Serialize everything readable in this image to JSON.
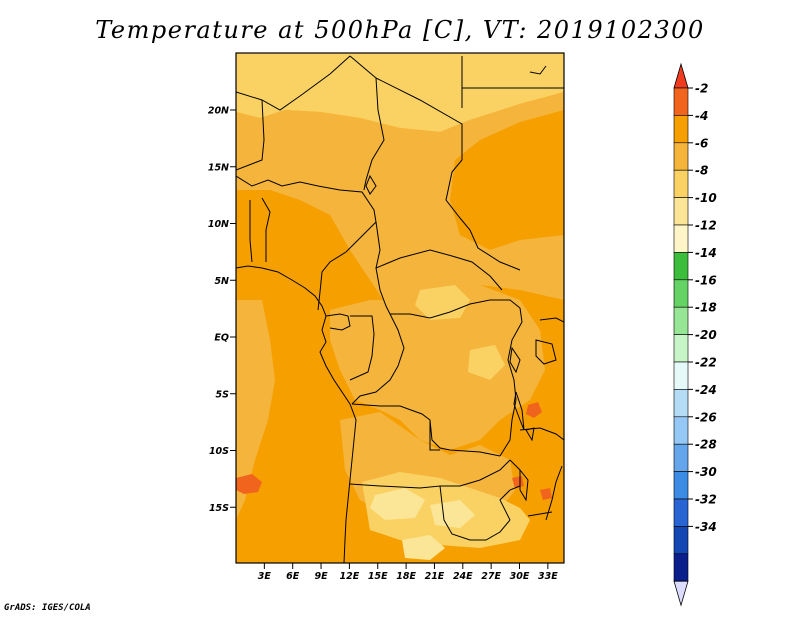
{
  "title": "Temperature at 500hPa [C], VT: 2019102300",
  "credit": "GrADS: IGES/COLA",
  "map": {
    "lat_ticks": [
      {
        "label": "20N",
        "lat": 20
      },
      {
        "label": "15N",
        "lat": 15
      },
      {
        "label": "10N",
        "lat": 10
      },
      {
        "label": "5N",
        "lat": 5
      },
      {
        "label": "EQ",
        "lat": 0
      },
      {
        "label": "5S",
        "lat": -5
      },
      {
        "label": "10S",
        "lat": -10
      },
      {
        "label": "15S",
        "lat": -15
      }
    ],
    "lon_ticks": [
      {
        "label": "3E",
        "lon": 3
      },
      {
        "label": "6E",
        "lon": 6
      },
      {
        "label": "9E",
        "lon": 9
      },
      {
        "label": "12E",
        "lon": 12
      },
      {
        "label": "15E",
        "lon": 15
      },
      {
        "label": "18E",
        "lon": 18
      },
      {
        "label": "21E",
        "lon": 21
      },
      {
        "label": "24E",
        "lon": 24
      },
      {
        "label": "27E",
        "lon": 27
      },
      {
        "label": "30E",
        "lon": 30
      },
      {
        "label": "33E",
        "lon": 33
      }
    ]
  },
  "colorbar": {
    "levels": [
      {
        "label": "-2",
        "color": "#f0641e"
      },
      {
        "label": "-4",
        "color": "#f5a000"
      },
      {
        "label": "-6",
        "color": "#f5b43c"
      },
      {
        "label": "-8",
        "color": "#fad264"
      },
      {
        "label": "-10",
        "color": "#fae696"
      },
      {
        "label": "-12",
        "color": "#fff5c8"
      },
      {
        "label": "-14",
        "color": "#3cbe3c"
      },
      {
        "label": "-16",
        "color": "#64d264"
      },
      {
        "label": "-18",
        "color": "#96e696"
      },
      {
        "label": "-20",
        "color": "#c8f5c8"
      },
      {
        "label": "-22",
        "color": "#e6fafa"
      },
      {
        "label": "-24",
        "color": "#b4dcf5"
      },
      {
        "label": "-26",
        "color": "#96c8f5"
      },
      {
        "label": "-28",
        "color": "#64a5eb"
      },
      {
        "label": "-30",
        "color": "#3c8ce6"
      },
      {
        "label": "-32",
        "color": "#2864d2"
      },
      {
        "label": "-34",
        "color": "#1446b4"
      }
    ],
    "top_arrow_color": "#f03c1e",
    "bottom_arrow_color": "#dcdcff",
    "extra_band_color": "#0a1e8c"
  }
}
